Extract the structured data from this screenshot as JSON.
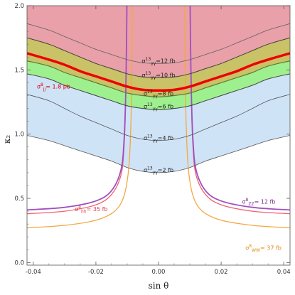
{
  "chart_data": {
    "type": "line",
    "xlabel": "sin θ",
    "ylabel": "κ₂",
    "xlim": [
      -0.042,
      0.042
    ],
    "ylim": [
      -0.02,
      2.0
    ],
    "x_ticks": [
      -0.04,
      -0.02,
      0.0,
      0.02,
      0.04
    ],
    "x_tick_labels": [
      "-0.04",
      "-0.02",
      "0.00",
      "0.02",
      "0.04"
    ],
    "y_ticks": [
      0.0,
      0.5,
      1.0,
      1.5,
      2.0
    ],
    "y_tick_labels": [
      "0.0",
      "0.5",
      "1.0",
      "1.5",
      "2.0"
    ],
    "grid": false,
    "regions": [
      {
        "label": "light-blue band",
        "color": "#cfe3f7",
        "lower": "sigma_gg_2",
        "upper": "sigma_gg_8"
      },
      {
        "label": "green band",
        "color": "#9ef08f",
        "lower": "sigma_gg_6",
        "upper": "sigma_gg_8"
      },
      {
        "label": "olive band",
        "color": "#c9c266",
        "lower": "sigma_gg_8",
        "upper": "sigma_gg_10"
      },
      {
        "label": "red band",
        "color": "#e9a0a8",
        "lower": "sigma_gg_10",
        "upper": "top"
      }
    ],
    "curves": [
      {
        "id": "sigma_gg_12",
        "color": "#606060",
        "width": 0.8,
        "x": [
          -0.042,
          -0.035,
          -0.03,
          -0.025,
          -0.02,
          -0.015,
          -0.01,
          -0.005,
          0,
          0.005,
          0.01,
          0.015,
          0.02,
          0.025,
          0.03,
          0.035,
          0.042
        ],
        "y": [
          1.86,
          1.81,
          1.76,
          1.71,
          1.66,
          1.62,
          1.58,
          1.555,
          1.55,
          1.555,
          1.58,
          1.62,
          1.66,
          1.71,
          1.76,
          1.81,
          1.86
        ]
      },
      {
        "id": "sigma_gg_10",
        "color": "#404040",
        "width": 1.0,
        "x": [
          -0.042,
          -0.035,
          -0.03,
          -0.025,
          -0.02,
          -0.015,
          -0.01,
          -0.005,
          0,
          0.005,
          0.01,
          0.015,
          0.02,
          0.025,
          0.03,
          0.035,
          0.042
        ],
        "y": [
          1.75,
          1.7,
          1.65,
          1.6,
          1.55,
          1.51,
          1.47,
          1.445,
          1.44,
          1.445,
          1.47,
          1.51,
          1.55,
          1.6,
          1.65,
          1.7,
          1.75
        ]
      },
      {
        "id": "sigma_gg_8",
        "color": "#5a7d33",
        "width": 1.2,
        "x": [
          -0.042,
          -0.035,
          -0.03,
          -0.025,
          -0.02,
          -0.015,
          -0.01,
          -0.005,
          0,
          0.005,
          0.01,
          0.015,
          0.02,
          0.025,
          0.03,
          0.035,
          0.042
        ],
        "y": [
          1.57,
          1.53,
          1.48,
          1.44,
          1.4,
          1.36,
          1.32,
          1.3,
          1.29,
          1.3,
          1.32,
          1.36,
          1.4,
          1.44,
          1.48,
          1.53,
          1.57
        ]
      },
      {
        "id": "sigma_gg_6",
        "color": "#404040",
        "width": 1.0,
        "x": [
          -0.042,
          -0.035,
          -0.03,
          -0.025,
          -0.02,
          -0.015,
          -0.01,
          -0.005,
          0,
          0.005,
          0.01,
          0.015,
          0.02,
          0.025,
          0.03,
          0.035,
          0.042
        ],
        "y": [
          1.47,
          1.43,
          1.38,
          1.34,
          1.3,
          1.26,
          1.22,
          1.2,
          1.19,
          1.2,
          1.22,
          1.26,
          1.3,
          1.34,
          1.38,
          1.43,
          1.47
        ]
      },
      {
        "id": "sigma_gg_4",
        "color": "#555555",
        "width": 0.8,
        "x": [
          -0.042,
          -0.035,
          -0.03,
          -0.025,
          -0.02,
          -0.015,
          -0.01,
          -0.005,
          0,
          0.005,
          0.01,
          0.015,
          0.02,
          0.025,
          0.03,
          0.035,
          0.042
        ],
        "y": [
          1.31,
          1.26,
          1.2,
          1.14,
          1.09,
          1.04,
          0.99,
          0.96,
          0.95,
          0.96,
          0.99,
          1.04,
          1.09,
          1.14,
          1.2,
          1.26,
          1.31
        ]
      },
      {
        "id": "sigma_gg_2",
        "color": "#555555",
        "width": 0.8,
        "x": [
          -0.042,
          -0.035,
          -0.03,
          -0.025,
          -0.02,
          -0.015,
          -0.01,
          -0.005,
          0,
          0.005,
          0.01,
          0.015,
          0.02,
          0.025,
          0.03,
          0.035,
          0.042
        ],
        "y": [
          0.99,
          0.95,
          0.91,
          0.87,
          0.83,
          0.79,
          0.74,
          0.71,
          0.7,
          0.71,
          0.74,
          0.79,
          0.83,
          0.87,
          0.91,
          0.95,
          0.99
        ]
      },
      {
        "id": "sigma_jj",
        "color": "#ee0000",
        "width": 3.5,
        "x": [
          -0.042,
          -0.035,
          -0.03,
          -0.025,
          -0.02,
          -0.015,
          -0.01,
          -0.005,
          0,
          0.005,
          0.01,
          0.015,
          0.02,
          0.025,
          0.03,
          0.035,
          0.042
        ],
        "y": [
          1.63,
          1.58,
          1.54,
          1.49,
          1.45,
          1.41,
          1.37,
          1.345,
          1.34,
          1.345,
          1.37,
          1.41,
          1.45,
          1.49,
          1.54,
          1.58,
          1.63
        ]
      },
      {
        "id": "sigma_zz_left",
        "color": "#a050c0",
        "width": 1.8,
        "x": [
          -0.042,
          -0.03,
          -0.02,
          -0.015,
          -0.012,
          -0.011,
          -0.0105,
          -0.0102,
          -0.0101
        ],
        "y": [
          0.41,
          0.43,
          0.48,
          0.56,
          0.72,
          0.95,
          1.3,
          1.75,
          2.0
        ]
      },
      {
        "id": "sigma_zz_right",
        "color": "#a050c0",
        "width": 1.8,
        "x": [
          0.0101,
          0.0102,
          0.0105,
          0.011,
          0.012,
          0.015,
          0.02,
          0.03,
          0.042
        ],
        "y": [
          2.0,
          1.75,
          1.3,
          0.95,
          0.72,
          0.56,
          0.48,
          0.43,
          0.41
        ]
      },
      {
        "id": "sigma_hh_left",
        "color": "#f06070",
        "width": 1.3,
        "x": [
          -0.042,
          -0.03,
          -0.02,
          -0.015,
          -0.012,
          -0.011,
          -0.0105,
          -0.0102,
          -0.0101
        ],
        "y": [
          0.38,
          0.4,
          0.45,
          0.53,
          0.68,
          0.9,
          1.25,
          1.7,
          2.0
        ]
      },
      {
        "id": "sigma_hh_right",
        "color": "#f06070",
        "width": 1.3,
        "x": [
          0.0101,
          0.0102,
          0.0105,
          0.011,
          0.012,
          0.015,
          0.02,
          0.03,
          0.042
        ],
        "y": [
          2.0,
          1.7,
          1.25,
          0.9,
          0.68,
          0.53,
          0.45,
          0.4,
          0.38
        ]
      },
      {
        "id": "sigma_ww_left",
        "color": "#f5a742",
        "width": 1.3,
        "x": [
          -0.042,
          -0.03,
          -0.02,
          -0.014,
          -0.011,
          -0.0095,
          -0.0088,
          -0.0085,
          -0.0084
        ],
        "y": [
          0.27,
          0.29,
          0.33,
          0.4,
          0.52,
          0.74,
          1.1,
          1.6,
          2.0
        ]
      },
      {
        "id": "sigma_ww_right",
        "color": "#f5a742",
        "width": 1.3,
        "x": [
          0.0084,
          0.0085,
          0.0088,
          0.0095,
          0.011,
          0.014,
          0.02,
          0.03,
          0.042
        ],
        "y": [
          2.0,
          1.6,
          1.1,
          0.74,
          0.52,
          0.4,
          0.33,
          0.29,
          0.27
        ]
      }
    ],
    "annotations": [
      {
        "id": "ann-gg12",
        "x": 0.0,
        "y": 1.555,
        "color": "#222222",
        "parts": [
          {
            "t": "σ",
            "s": "n"
          },
          {
            "t": "13",
            "s": "sup"
          },
          {
            "t": "γγ",
            "s": "sub"
          },
          {
            "t": "=12 fb",
            "s": "n"
          }
        ]
      },
      {
        "id": "ann-gg10",
        "x": 0.0,
        "y": 1.445,
        "color": "#222222",
        "parts": [
          {
            "t": "σ",
            "s": "n"
          },
          {
            "t": "13",
            "s": "sup"
          },
          {
            "t": "γγ",
            "s": "sub"
          },
          {
            "t": "=10 fb",
            "s": "n"
          }
        ]
      },
      {
        "id": "ann-gg8",
        "x": 0.0,
        "y": 1.3,
        "color": "#222222",
        "parts": [
          {
            "t": "σ",
            "s": "n"
          },
          {
            "t": "13",
            "s": "sup"
          },
          {
            "t": "γγ",
            "s": "sub"
          },
          {
            "t": "=8 fb",
            "s": "n"
          }
        ]
      },
      {
        "id": "ann-gg6",
        "x": 0.0,
        "y": 1.2,
        "color": "#222222",
        "parts": [
          {
            "t": "σ",
            "s": "n"
          },
          {
            "t": "13",
            "s": "sup"
          },
          {
            "t": "γγ",
            "s": "sub"
          },
          {
            "t": "=6 fb",
            "s": "n"
          }
        ]
      },
      {
        "id": "ann-gg4",
        "x": 0.0,
        "y": 0.955,
        "color": "#222222",
        "parts": [
          {
            "t": "σ",
            "s": "n"
          },
          {
            "t": "13",
            "s": "sup"
          },
          {
            "t": "γγ",
            "s": "sub"
          },
          {
            "t": "=4 fb",
            "s": "n"
          }
        ]
      },
      {
        "id": "ann-gg2",
        "x": 0.0,
        "y": 0.705,
        "color": "#222222",
        "parts": [
          {
            "t": "σ",
            "s": "n"
          },
          {
            "t": "13",
            "s": "sup"
          },
          {
            "t": "γγ",
            "s": "sub"
          },
          {
            "t": "=2 fb",
            "s": "n"
          }
        ]
      },
      {
        "id": "ann-jj",
        "x": -0.0335,
        "y": 1.355,
        "color": "#dd0000",
        "parts": [
          {
            "t": "σ",
            "s": "n"
          },
          {
            "t": "8",
            "s": "sup"
          },
          {
            "t": "jj",
            "s": "sub"
          },
          {
            "t": "= 1.8 pb",
            "s": "n"
          }
        ]
      },
      {
        "id": "ann-hh",
        "x": -0.0215,
        "y": 0.4,
        "color": "#e23b4e",
        "parts": [
          {
            "t": "σ",
            "s": "n"
          },
          {
            "t": "8",
            "s": "sup"
          },
          {
            "t": "hh",
            "s": "sub"
          },
          {
            "t": "= 35 fb",
            "s": "n"
          }
        ]
      },
      {
        "id": "ann-zz",
        "x": 0.032,
        "y": 0.46,
        "color": "#7a2a8c",
        "parts": [
          {
            "t": "σ",
            "s": "n"
          },
          {
            "t": "8",
            "s": "sup"
          },
          {
            "t": "ZZ",
            "s": "sub"
          },
          {
            "t": "= 12 fb",
            "s": "n"
          }
        ]
      },
      {
        "id": "ann-ww",
        "x": 0.0335,
        "y": 0.1,
        "color": "#e08a10",
        "parts": [
          {
            "t": "σ",
            "s": "n"
          },
          {
            "t": "8",
            "s": "sup"
          },
          {
            "t": "WW",
            "s": "sub"
          },
          {
            "t": "= 37 fb",
            "s": "n"
          }
        ]
      }
    ]
  }
}
